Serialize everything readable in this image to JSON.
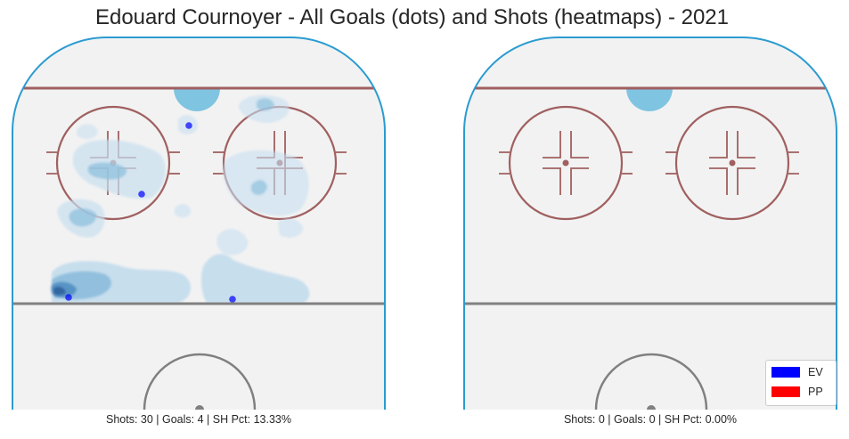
{
  "title": "Edouard Cournoyer - All Goals (dots) and Shots (heatmaps) - 2021",
  "colors": {
    "ice": "#f2f2f2",
    "boards": "#2b9bd1",
    "goal_line": "#a06060",
    "faceoff": "#a06060",
    "blue_line": "#808080",
    "crease": "#7fc4e0",
    "ev": "#0000ff",
    "pp": "#ff0000"
  },
  "legend": [
    {
      "label": "EV",
      "color": "#0000ff"
    },
    {
      "label": "PP",
      "color": "#ff0000"
    }
  ],
  "chart_data": [
    {
      "type": "scatter",
      "panel": "left",
      "caption": "Shots: 30 | Goals: 4 | SH Pct: 13.33%",
      "goals": [
        {
          "x": 212,
          "y": 141,
          "strength": "EV"
        },
        {
          "x": 159,
          "y": 218,
          "strength": "EV"
        },
        {
          "x": 77,
          "y": 334,
          "strength": "EV"
        },
        {
          "x": 261,
          "y": 336,
          "strength": "EV"
        }
      ],
      "shot_density_peaks": [
        {
          "x": 70,
          "y": 328,
          "level": 4
        },
        {
          "x": 95,
          "y": 245,
          "level": 3
        },
        {
          "x": 118,
          "y": 312,
          "level": 3
        },
        {
          "x": 120,
          "y": 188,
          "level": 2
        },
        {
          "x": 290,
          "y": 215,
          "level": 2
        },
        {
          "x": 296,
          "y": 118,
          "level": 2
        },
        {
          "x": 212,
          "y": 141,
          "level": 2
        },
        {
          "x": 266,
          "y": 272,
          "level": 1
        },
        {
          "x": 326,
          "y": 255,
          "level": 1
        },
        {
          "x": 325,
          "y": 330,
          "level": 1
        },
        {
          "x": 160,
          "y": 218,
          "level": 1
        },
        {
          "x": 206,
          "y": 238,
          "level": 1
        }
      ]
    },
    {
      "type": "scatter",
      "panel": "right",
      "caption": "Shots: 0 | Goals: 0 | SH Pct: 0.00%",
      "goals": [],
      "shot_density_peaks": []
    }
  ]
}
